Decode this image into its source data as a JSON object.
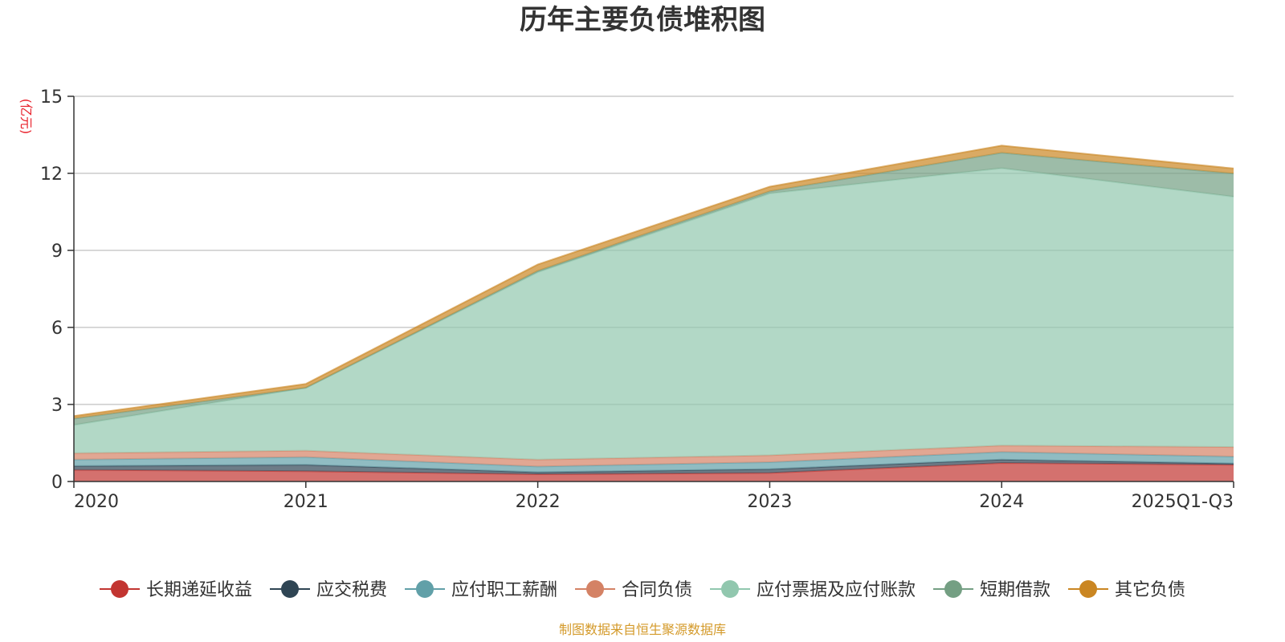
{
  "chart_data": {
    "type": "area",
    "stacked": true,
    "title": "历年主要负债堆积图",
    "unit_label": "(亿元)",
    "x": [
      "2020",
      "2021",
      "2022",
      "2023",
      "2024",
      "2025Q1-Q3"
    ],
    "ylim": [
      0,
      15
    ],
    "yticks": [
      0,
      3,
      6,
      9,
      12,
      15
    ],
    "grid": true,
    "legend_position": "bottom",
    "series": [
      {
        "name": "长期递延收益",
        "color": "#c23531",
        "values": [
          0.45,
          0.4,
          0.28,
          0.33,
          0.72,
          0.65
        ]
      },
      {
        "name": "应交税费",
        "color": "#2f4554",
        "values": [
          0.15,
          0.25,
          0.08,
          0.15,
          0.13,
          0.05
        ]
      },
      {
        "name": "应付职工薪酬",
        "color": "#61a0a8",
        "values": [
          0.25,
          0.3,
          0.22,
          0.27,
          0.3,
          0.27
        ]
      },
      {
        "name": "合同负债",
        "color": "#d48265",
        "values": [
          0.25,
          0.25,
          0.27,
          0.27,
          0.25,
          0.37
        ]
      },
      {
        "name": "应付票据及应付账款",
        "color": "#91c7ae",
        "values": [
          1.1,
          2.45,
          7.3,
          10.2,
          10.8,
          9.75
        ]
      },
      {
        "name": "短期借款",
        "color": "#749f83",
        "values": [
          0.25,
          0.0,
          0.05,
          0.08,
          0.6,
          0.9
        ]
      },
      {
        "name": "其它负债",
        "color": "#ca8622",
        "values": [
          0.1,
          0.15,
          0.25,
          0.18,
          0.28,
          0.2
        ]
      }
    ],
    "source_note": "制图数据来自恒生聚源数据库"
  }
}
